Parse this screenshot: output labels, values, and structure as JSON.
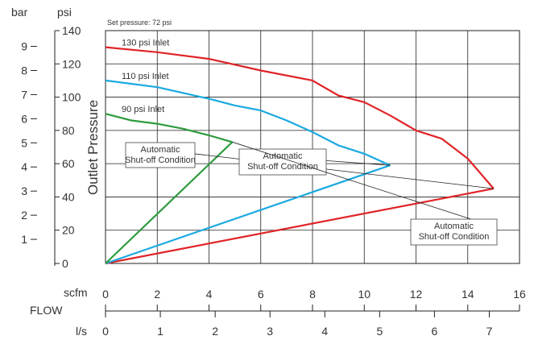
{
  "chart_data": {
    "type": "line",
    "note": "Set pressure:  72 psi",
    "ylabel": "Outlet Pressure",
    "flow_label": "FLOW",
    "units": {
      "psi": "psi",
      "bar": "bar",
      "scfm": "scfm",
      "ls": "l/s"
    },
    "psi_axis": {
      "ticks": [
        "0",
        "20",
        "40",
        "60",
        "80",
        "100",
        "120",
        "140"
      ],
      "range": [
        0,
        140
      ]
    },
    "bar_axis": {
      "ticks": [
        "1",
        "2",
        "3",
        "4",
        "5",
        "6",
        "7",
        "8",
        "9"
      ]
    },
    "scfm_axis": {
      "ticks": [
        "0",
        "2",
        "4",
        "6",
        "8",
        "10",
        "12",
        "14",
        "16"
      ],
      "range": [
        0,
        16
      ]
    },
    "ls_axis": {
      "ticks": [
        "0",
        "1",
        "2",
        "3",
        "4",
        "5",
        "6",
        "7"
      ]
    },
    "grid": true,
    "series": [
      {
        "name": "130 psi Inlet",
        "color": "#e02428",
        "upper": [
          [
            0,
            130
          ],
          [
            2,
            127
          ],
          [
            4,
            123
          ],
          [
            6,
            116
          ],
          [
            8,
            110
          ],
          [
            9,
            101
          ],
          [
            10,
            97
          ],
          [
            11,
            89
          ],
          [
            12,
            80
          ],
          [
            13,
            75
          ],
          [
            14,
            63
          ],
          [
            15,
            45
          ]
        ],
        "lower": [
          [
            15,
            45
          ],
          [
            0,
            0
          ]
        ]
      },
      {
        "name": "110 psi Inlet",
        "color": "#1aa9e0",
        "upper": [
          [
            0,
            110
          ],
          [
            2,
            106
          ],
          [
            4,
            99
          ],
          [
            5,
            95
          ],
          [
            6,
            92
          ],
          [
            7,
            86
          ],
          [
            8,
            79
          ],
          [
            9,
            71
          ],
          [
            10,
            66
          ],
          [
            11,
            59
          ]
        ],
        "lower": [
          [
            11,
            59
          ],
          [
            0,
            0
          ]
        ]
      },
      {
        "name": "90 psi Inlet",
        "color": "#2e9b3e",
        "upper": [
          [
            0,
            90
          ],
          [
            1,
            86
          ],
          [
            2,
            84
          ],
          [
            3,
            81
          ],
          [
            4,
            77
          ],
          [
            4.9,
            73
          ]
        ],
        "lower": [
          [
            4.9,
            73
          ],
          [
            0,
            0
          ]
        ]
      }
    ],
    "annotations": [
      {
        "lines": [
          "Automatic",
          "Shut-off Condition"
        ],
        "color": "#2e9b3e"
      },
      {
        "lines": [
          "Automatic",
          "Shut-off Condition"
        ],
        "color": "#1aa9e0"
      },
      {
        "lines": [
          "Automatic",
          "Shut-off Condition"
        ],
        "color": "#e02428"
      }
    ]
  }
}
